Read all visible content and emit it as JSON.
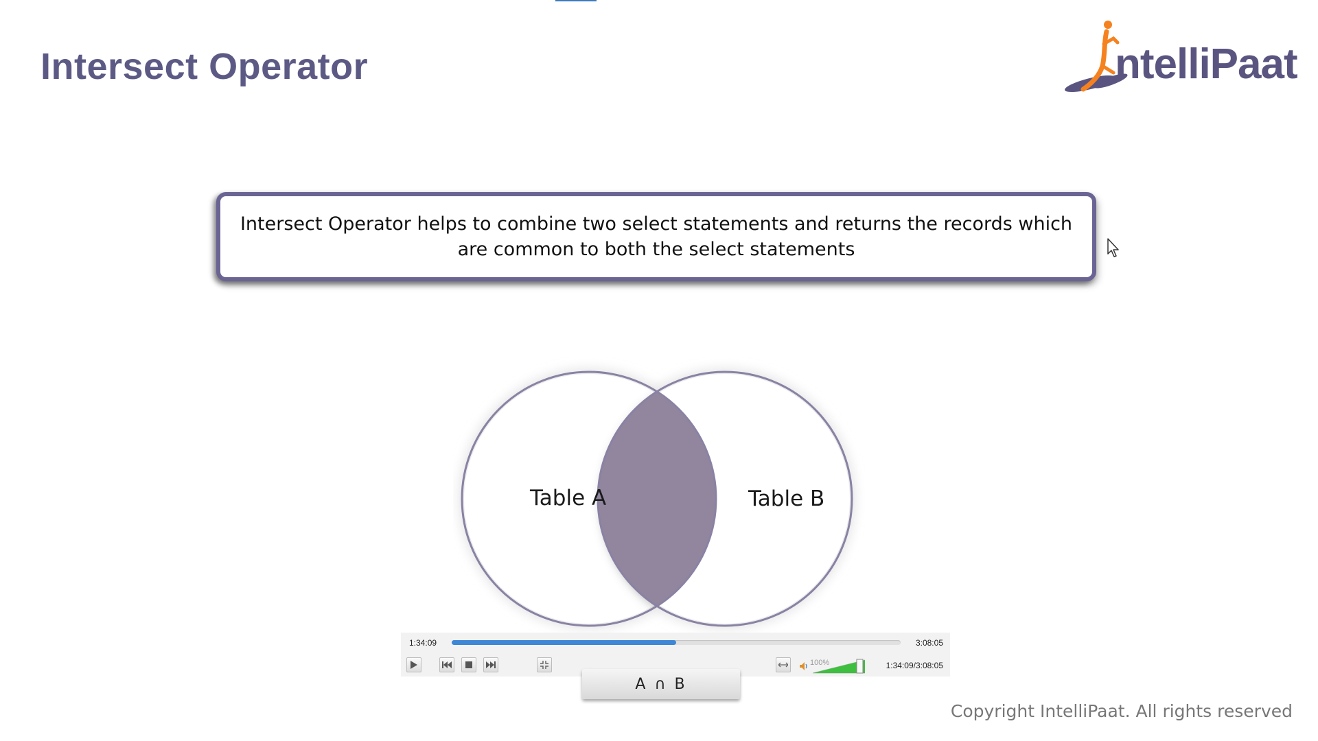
{
  "slide": {
    "title": "Intersect Operator",
    "definition": "Intersect Operator helps to combine two select statements and returns the records which are common to both the select statements",
    "copyright": "Copyright IntelliPaat. All rights reserved"
  },
  "logo": {
    "text": "ntelliPaat",
    "brand": "IntelliPaat",
    "color": "#5a5580",
    "accent": "#f5821f"
  },
  "venn": {
    "left_label": "Table A",
    "right_label": "Table B",
    "result_label": "A ∩ B",
    "intersection_color": "#92869f",
    "outline_color": "#8a82a3"
  },
  "player": {
    "current_time": "1:34:09",
    "total_time": "3:08:05",
    "combined_time": "1:34:09/3:08:05",
    "progress": 0.5,
    "volume_label": "100%",
    "volume": 1.0,
    "accent_color": "#3d87d6",
    "icons": [
      "play-icon",
      "previous-icon",
      "stop-icon",
      "next-icon",
      "fullscreen-icon",
      "stretch-icon",
      "speaker-icon"
    ]
  }
}
